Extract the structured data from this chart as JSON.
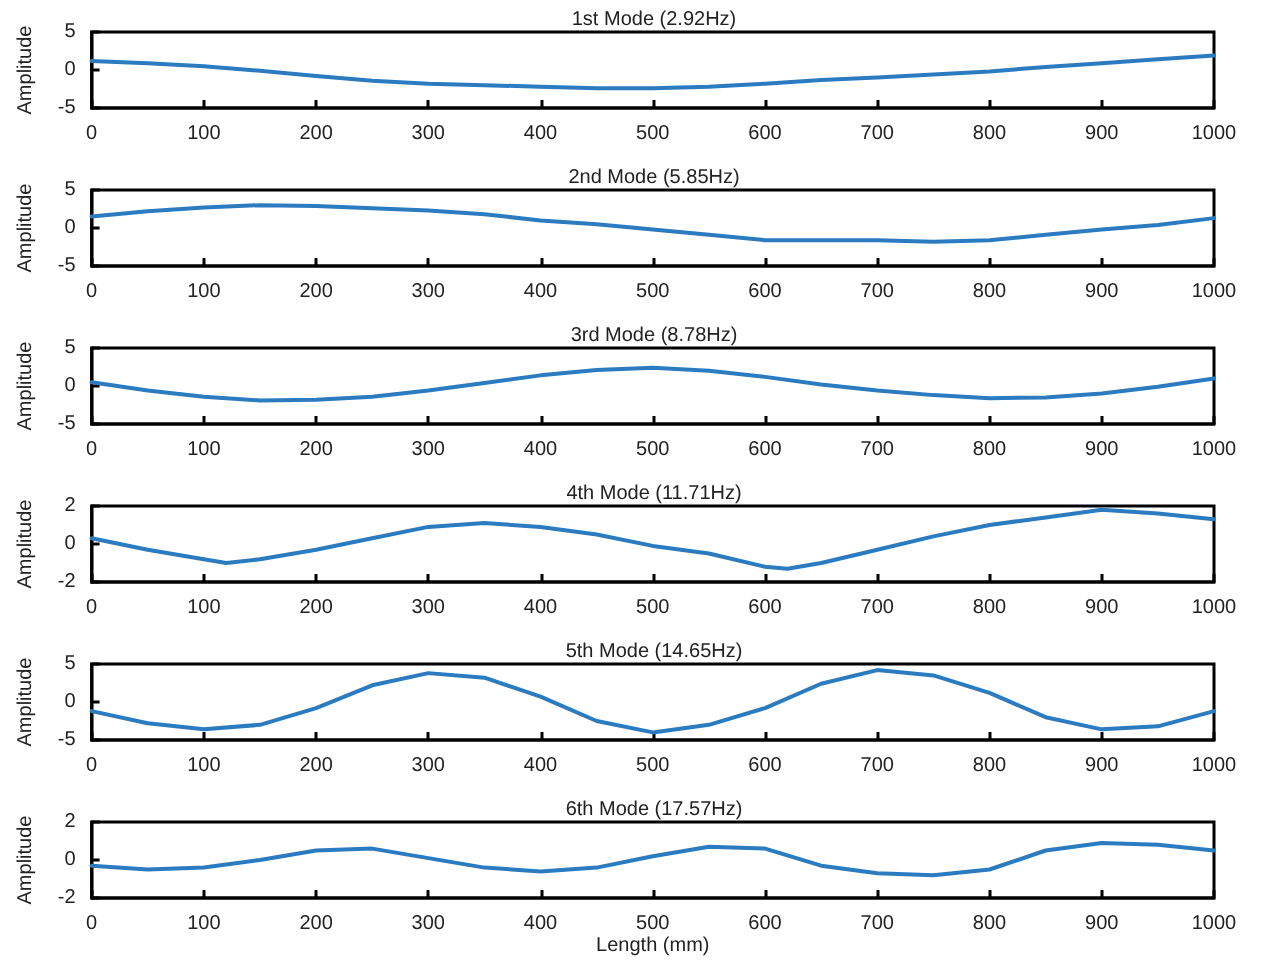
{
  "chart_data": [
    {
      "type": "line",
      "title": "1st Mode (2.92Hz)",
      "ylabel": "Amplitude",
      "color": "#2b7bc0",
      "x": [
        0,
        50,
        100,
        150,
        200,
        250,
        300,
        350,
        400,
        450,
        500,
        550,
        600,
        650,
        700,
        750,
        800,
        850,
        900,
        950,
        1000
      ],
      "values": [
        1.2,
        0.9,
        0.5,
        -0.1,
        -0.8,
        -1.4,
        -1.8,
        -2,
        -2.2,
        -2.4,
        -2.4,
        -2.2,
        -1.8,
        -1.3,
        -1,
        -0.6,
        -0.2,
        0.4,
        0.9,
        1.4,
        1.9
      ],
      "xlim": [
        0,
        1000
      ],
      "xticks": [
        0,
        100,
        200,
        300,
        400,
        500,
        600,
        700,
        800,
        900,
        1000
      ],
      "ylim": [
        -5,
        5
      ],
      "yticks": [
        -5,
        0,
        5
      ]
    },
    {
      "type": "line",
      "title": "2nd Mode (5.85Hz)",
      "ylabel": "Amplitude",
      "color": "#2b7bc0",
      "x": [
        0,
        50,
        100,
        150,
        200,
        250,
        300,
        350,
        400,
        450,
        500,
        550,
        600,
        650,
        700,
        750,
        800,
        850,
        900,
        950,
        1000
      ],
      "values": [
        1.5,
        2.2,
        2.7,
        3,
        2.9,
        2.6,
        2.3,
        1.8,
        1,
        0.5,
        -0.2,
        -0.9,
        -1.6,
        -1.6,
        -1.6,
        -1.8,
        -1.6,
        -0.9,
        -0.2,
        0.4,
        1.3
      ],
      "xlim": [
        0,
        1000
      ],
      "xticks": [
        0,
        100,
        200,
        300,
        400,
        500,
        600,
        700,
        800,
        900,
        1000
      ],
      "ylim": [
        -5,
        5
      ],
      "yticks": [
        -5,
        0,
        5
      ]
    },
    {
      "type": "line",
      "title": "3rd Mode (8.78Hz)",
      "ylabel": "Amplitude",
      "color": "#2b7bc0",
      "x": [
        0,
        50,
        100,
        150,
        200,
        250,
        300,
        350,
        400,
        450,
        500,
        550,
        600,
        650,
        700,
        750,
        800,
        850,
        900,
        950,
        1000
      ],
      "values": [
        0.5,
        -0.6,
        -1.4,
        -1.9,
        -1.8,
        -1.4,
        -0.6,
        0.4,
        1.4,
        2.1,
        2.4,
        2,
        1.2,
        0.2,
        -0.6,
        -1.2,
        -1.6,
        -1.5,
        -1,
        -0.1,
        1
      ],
      "xlim": [
        0,
        1000
      ],
      "xticks": [
        0,
        100,
        200,
        300,
        400,
        500,
        600,
        700,
        800,
        900,
        1000
      ],
      "ylim": [
        -5,
        5
      ],
      "yticks": [
        -5,
        0,
        5
      ]
    },
    {
      "type": "line",
      "title": "4th Mode (11.71Hz)",
      "ylabel": "Amplitude",
      "color": "#2b7bc0",
      "x": [
        0,
        50,
        100,
        120,
        150,
        200,
        250,
        300,
        350,
        400,
        450,
        500,
        550,
        600,
        620,
        650,
        700,
        750,
        800,
        850,
        900,
        950,
        1000
      ],
      "values": [
        0.3,
        -0.3,
        -0.8,
        -1,
        -0.8,
        -0.3,
        0.3,
        0.9,
        1.1,
        0.9,
        0.5,
        -0.1,
        -0.5,
        -1.2,
        -1.3,
        -1,
        -0.3,
        0.4,
        1,
        1.4,
        1.8,
        1.6,
        1.3
      ],
      "xlim": [
        0,
        1000
      ],
      "xticks": [
        0,
        100,
        200,
        300,
        400,
        500,
        600,
        700,
        800,
        900,
        1000
      ],
      "ylim": [
        -2,
        2
      ],
      "yticks": [
        -2,
        0,
        2
      ]
    },
    {
      "type": "line",
      "title": "5th Mode (14.65Hz)",
      "ylabel": "Amplitude",
      "color": "#2b7bc0",
      "x": [
        0,
        50,
        100,
        150,
        200,
        250,
        300,
        350,
        400,
        450,
        500,
        550,
        600,
        650,
        700,
        750,
        800,
        850,
        900,
        950,
        1000
      ],
      "values": [
        -1.2,
        -2.8,
        -3.6,
        -3,
        -0.8,
        2.2,
        3.8,
        3.2,
        0.7,
        -2.5,
        -4,
        -3,
        -0.8,
        2.4,
        4.2,
        3.5,
        1.2,
        -2,
        -3.6,
        -3.2,
        -1.2
      ],
      "xlim": [
        0,
        1000
      ],
      "xticks": [
        0,
        100,
        200,
        300,
        400,
        500,
        600,
        700,
        800,
        900,
        1000
      ],
      "ylim": [
        -5,
        5
      ],
      "yticks": [
        -5,
        0,
        5
      ]
    },
    {
      "type": "line",
      "title": "6th Mode (17.57Hz)",
      "ylabel": "Amplitude",
      "xlabel": "Length (mm)",
      "color": "#2b7bc0",
      "x": [
        0,
        50,
        100,
        150,
        200,
        250,
        300,
        350,
        400,
        450,
        500,
        550,
        600,
        650,
        700,
        750,
        800,
        850,
        900,
        950,
        1000
      ],
      "values": [
        -0.3,
        -0.5,
        -0.4,
        0,
        0.5,
        0.6,
        0.1,
        -0.4,
        -0.6,
        -0.4,
        0.2,
        0.7,
        0.6,
        -0.3,
        -0.7,
        -0.8,
        -0.5,
        0.5,
        0.9,
        0.8,
        0.5
      ],
      "xlim": [
        0,
        1000
      ],
      "xticks": [
        0,
        100,
        200,
        300,
        400,
        500,
        600,
        700,
        800,
        900,
        1000
      ],
      "ylim": [
        -2,
        2
      ],
      "yticks": [
        -2,
        0,
        2
      ]
    }
  ]
}
